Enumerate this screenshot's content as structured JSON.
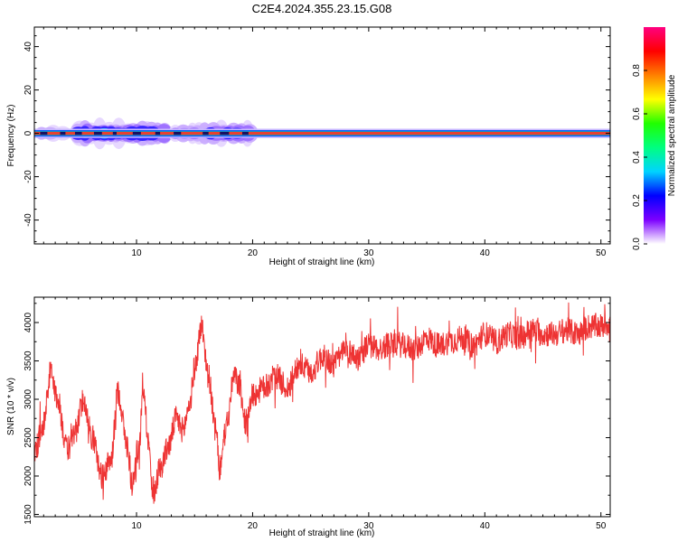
{
  "page": {
    "title": "C2E4.2024.355.23.15.G08"
  },
  "chart_data": [
    {
      "type": "heatmap",
      "title": "C2E4.2024.355.23.15.G08",
      "xlabel": "Height of straight line (km)",
      "ylabel": "Frequency (Hz)",
      "xlim": [
        1.2,
        50.8
      ],
      "ylim": [
        -51,
        49
      ],
      "xticks": [
        10,
        20,
        30,
        40,
        50
      ],
      "yticks": [
        -40,
        -20,
        0,
        20,
        40
      ],
      "colorbar": {
        "label": "Normalized spectral amplitude",
        "range": [
          0,
          1
        ],
        "ticks": [
          "0.0",
          "0.2",
          "0.4",
          "0.6",
          "0.8"
        ],
        "colors": [
          "#ffffff",
          "#7c00ff",
          "#0000ff",
          "#00d4ff",
          "#00ff80",
          "#20ff00",
          "#ffff00",
          "#ff8000",
          "#ff0000",
          "#ff0080"
        ]
      },
      "signal": {
        "center_frequency_hz": 0,
        "core_color": "#e84030",
        "band_half_width_hz": 1.5,
        "broadening": [
          {
            "x_start": 1.5,
            "x_end": 3.5,
            "half_width_hz": 3
          },
          {
            "x_start": 4.5,
            "x_end": 12.0,
            "half_width_hz": 6
          },
          {
            "x_start": 13.0,
            "x_end": 15.0,
            "half_width_hz": 4
          },
          {
            "x_start": 15.5,
            "x_end": 19.5,
            "half_width_hz": 5
          }
        ]
      }
    },
    {
      "type": "line",
      "xlabel": "Height of straight line (km)",
      "ylabel": "SNR (10 * v/v)",
      "xlim": [
        1.2,
        50.8
      ],
      "ylim": [
        1470,
        4330
      ],
      "xticks": [
        10,
        20,
        30,
        40,
        50
      ],
      "yticks": [
        1500,
        2000,
        2500,
        3000,
        3500,
        4000
      ],
      "color": "#ee3333",
      "x": [
        1.2,
        2.0,
        2.6,
        3.2,
        4.0,
        4.8,
        5.4,
        6.2,
        7.0,
        7.8,
        8.4,
        9.2,
        9.6,
        10.2,
        10.6,
        11.0,
        11.4,
        12.0,
        12.8,
        13.4,
        14.0,
        14.6,
        15.0,
        15.6,
        16.2,
        16.8,
        17.2,
        17.8,
        18.4,
        18.8,
        19.4,
        20.0,
        21.0,
        22.0,
        23.0,
        24.0,
        25.0,
        26.0,
        27.0,
        28.0,
        29.0,
        30.0,
        31.0,
        32.0,
        33.0,
        34.0,
        35.0,
        36.0,
        37.0,
        38.0,
        39.0,
        40.0,
        41.0,
        42.0,
        43.0,
        44.0,
        45.0,
        46.0,
        47.0,
        48.0,
        49.0,
        50.0,
        50.8
      ],
      "y": [
        2300,
        2700,
        3350,
        3000,
        2350,
        2600,
        3000,
        2500,
        2000,
        2200,
        3100,
        2400,
        1900,
        2350,
        3150,
        2500,
        1750,
        2100,
        2400,
        2750,
        2600,
        2950,
        3400,
        3950,
        3300,
        2600,
        2100,
        2700,
        3300,
        3200,
        2700,
        3050,
        3150,
        3300,
        3150,
        3450,
        3350,
        3550,
        3450,
        3650,
        3550,
        3700,
        3650,
        3750,
        3700,
        3650,
        3800,
        3700,
        3750,
        3800,
        3700,
        3850,
        3750,
        3850,
        3800,
        3900,
        3850,
        3850,
        3900,
        3850,
        3950,
        3950,
        4000
      ],
      "noise_amplitude": 170,
      "spike_amplitude": 320
    }
  ]
}
